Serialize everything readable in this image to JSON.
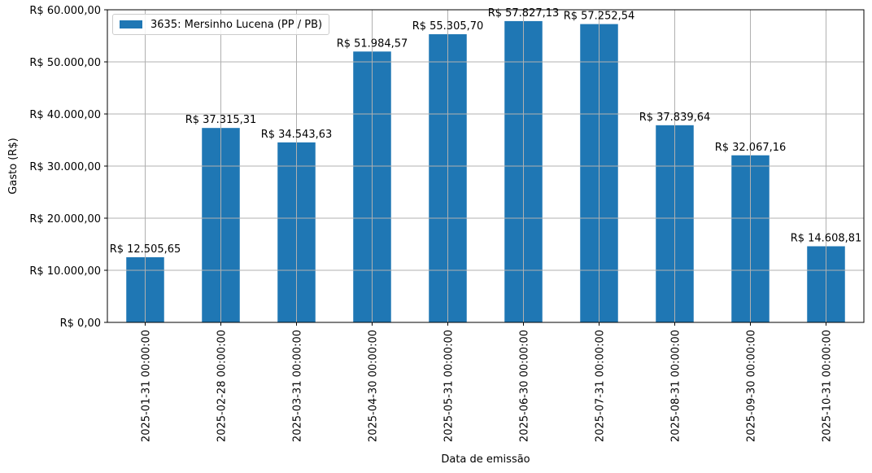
{
  "chart_data": {
    "type": "bar",
    "title": "",
    "xlabel": "Data de emissão",
    "ylabel": "Gasto (R$)",
    "ylim": [
      0,
      60000
    ],
    "grid": true,
    "legend_position": "upper left",
    "categories": [
      "2025-01-31 00:00:00",
      "2025-02-28 00:00:00",
      "2025-03-31 00:00:00",
      "2025-04-30 00:00:00",
      "2025-05-31 00:00:00",
      "2025-06-30 00:00:00",
      "2025-07-31 00:00:00",
      "2025-08-31 00:00:00",
      "2025-09-30 00:00:00",
      "2025-10-31 00:00:00"
    ],
    "series": [
      {
        "name": "3635: Mersinho Lucena (PP / PB)",
        "color": "#1f77b4",
        "values": [
          12505.65,
          37315.31,
          34543.63,
          51984.57,
          55305.7,
          57827.13,
          57252.54,
          37839.64,
          32067.16,
          14608.81
        ],
        "labels": [
          "R$ 12.505,65",
          "R$ 37.315,31",
          "R$ 34.543,63",
          "R$ 51.984,57",
          "R$ 55.305,70",
          "R$ 57.827,13",
          "R$ 57.252,54",
          "R$ 37.839,64",
          "R$ 32.067,16",
          "R$ 14.608,81"
        ]
      }
    ],
    "yticks": [
      0,
      10000,
      20000,
      30000,
      40000,
      50000,
      60000
    ],
    "ytick_labels": [
      "R$ 0,00",
      "R$ 10.000,00",
      "R$ 20.000,00",
      "R$ 30.000,00",
      "R$ 40.000,00",
      "R$ 50.000,00",
      "R$ 60.000,00"
    ]
  },
  "legend": {
    "label": "3635: Mersinho Lucena (PP / PB)",
    "color": "#1f77b4"
  }
}
